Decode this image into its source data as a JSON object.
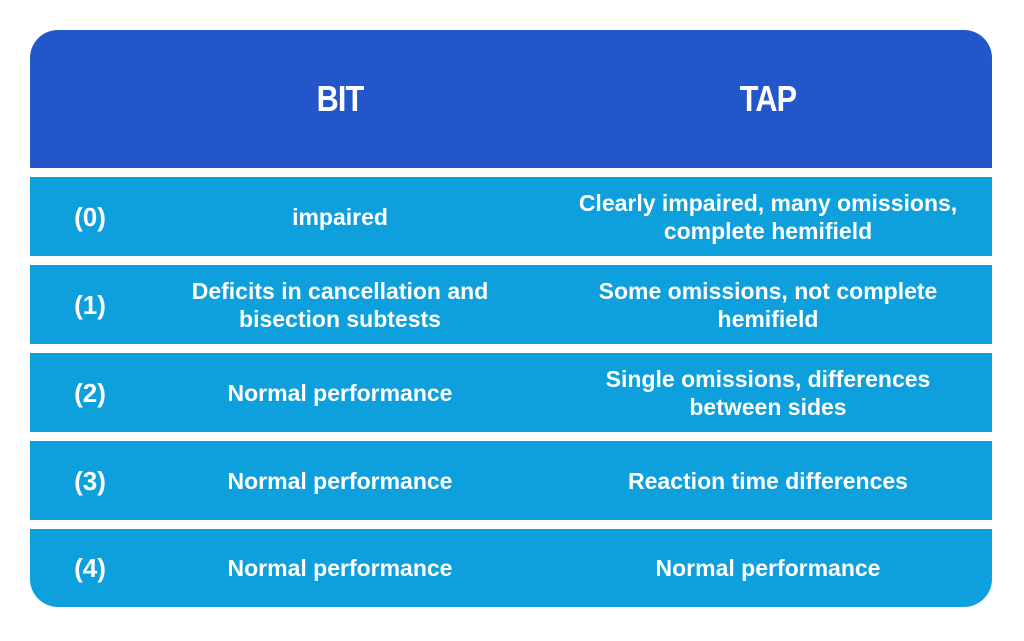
{
  "header": {
    "columns": [
      "BIT",
      "TAP"
    ]
  },
  "rows": [
    {
      "label": "(0)",
      "bit": "impaired",
      "tap": "Clearly impaired, many omissions, complete hemifield"
    },
    {
      "label": "(1)",
      "bit": "Deficits in cancellation and bisection subtests",
      "tap": "Some omissions, not complete hemifield"
    },
    {
      "label": "(2)",
      "bit": "Normal performance",
      "tap": "Single omissions, differences between sides"
    },
    {
      "label": "(3)",
      "bit": "Normal performance",
      "tap": "Reaction time differences"
    },
    {
      "label": "(4)",
      "bit": "Normal performance",
      "tap": "Normal performance"
    }
  ]
}
